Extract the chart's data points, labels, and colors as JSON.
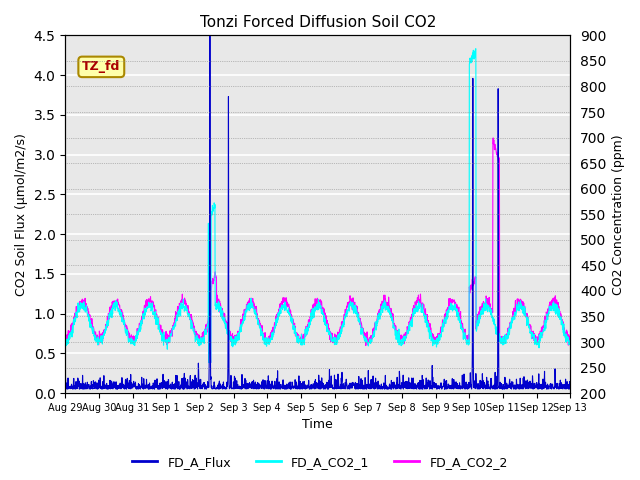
{
  "title": "Tonzi Forced Diffusion Soil CO2",
  "xlabel": "Time",
  "ylabel_left": "CO2 Soil Flux (μmol/m2/s)",
  "ylabel_right": "CO2 Concentration (ppm)",
  "ylim_left": [
    0.0,
    4.5
  ],
  "ylim_right": [
    200,
    900
  ],
  "xtick_labels": [
    "Aug 29",
    "Aug 30",
    "Aug 31",
    "Sep 1",
    "Sep 2",
    "Sep 3",
    "Sep 4",
    "Sep 5",
    "Sep 6",
    "Sep 7",
    "Sep 8",
    "Sep 9",
    "Sep 10",
    "Sep 11",
    "Sep 12",
    "Sep 13"
  ],
  "legend_labels": [
    "FD_A_Flux",
    "FD_A_CO2_1",
    "FD_A_CO2_2"
  ],
  "legend_colors": [
    "#0000CD",
    "#00FFFF",
    "#FF00FF"
  ],
  "flux_color": "#0000CD",
  "co2_1_color": "#00FFFF",
  "co2_2_color": "#FF00FF",
  "label_box_color": "#FFFFAA",
  "label_box_text": "TZ_fd",
  "label_box_text_color": "#AA0000",
  "background_color": "#E8E8E8",
  "grid_color": "#FFFFFF",
  "right_tick_style": "dotted",
  "n_points": 2016,
  "duration_days": 15,
  "seed": 42
}
